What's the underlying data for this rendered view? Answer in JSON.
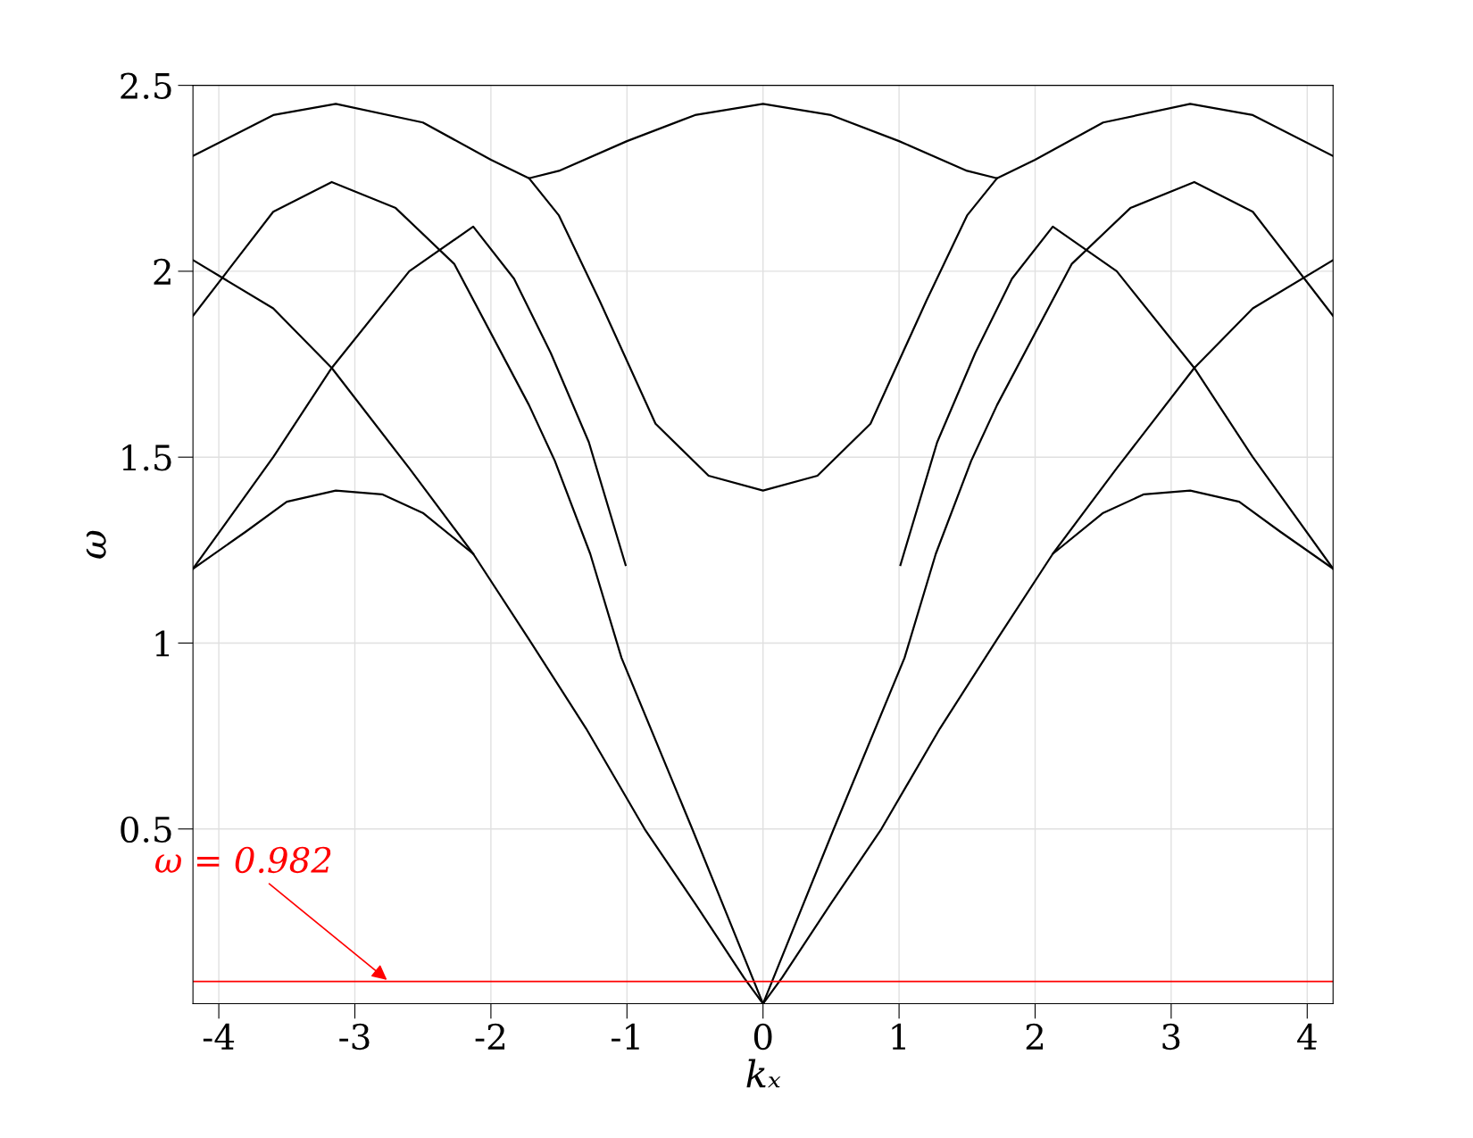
{
  "chart_data": {
    "type": "line",
    "xlabel": "kₓ",
    "ylabel": "ω",
    "xlim": [
      -4.19,
      4.19
    ],
    "ylim": [
      0.03,
      2.5
    ],
    "xticks": [
      -4,
      -3,
      -2,
      -1,
      0,
      1,
      2,
      3,
      4
    ],
    "yticks": [
      0.5,
      1,
      1.5,
      2,
      2.5
    ],
    "grid": true,
    "legend": false,
    "marker": "none",
    "line_style": "solid",
    "series": [
      {
        "color": "#000000",
        "x": [
          -4.19,
          -3.8,
          -3.5,
          -3.14,
          -2.8,
          -2.5,
          -2.13,
          -1.72,
          -1.3,
          -0.87,
          -0.5,
          -0.14,
          0,
          0.14,
          0.5,
          0.87,
          1.3,
          1.72,
          2.13,
          2.5,
          2.8,
          3.14,
          3.5,
          3.8,
          4.19
        ],
        "values": [
          1.2,
          1.3,
          1.38,
          1.41,
          1.4,
          1.35,
          1.24,
          1.01,
          0.77,
          0.5,
          0.3,
          0.1,
          0.03,
          0.1,
          0.3,
          0.5,
          0.77,
          1.01,
          1.24,
          1.35,
          1.4,
          1.41,
          1.38,
          1.3,
          1.2
        ]
      },
      {
        "color": "#000000",
        "x": [
          -4.19,
          -3.6,
          -3.17,
          -2.7,
          -2.27,
          -1.72,
          -1.53,
          -1.27,
          -1.04,
          -0.52,
          0,
          0.52,
          1.04,
          1.27,
          1.53,
          1.72,
          2.27,
          2.7,
          3.17,
          3.6,
          4.19
        ],
        "values": [
          1.88,
          2.16,
          2.24,
          2.17,
          2.02,
          1.64,
          1.49,
          1.24,
          0.96,
          0.5,
          0.03,
          0.5,
          0.96,
          1.24,
          1.49,
          1.64,
          2.02,
          2.17,
          2.24,
          2.16,
          1.88
        ]
      },
      {
        "color": "#000000",
        "x": [
          -4.19,
          -3.6,
          -3.14,
          -2.5,
          -2,
          -1.72,
          -1.5,
          -1,
          -0.5,
          0,
          0.5,
          1,
          1.5,
          1.72,
          2,
          2.5,
          3.14,
          3.6,
          4.19
        ],
        "values": [
          2.31,
          2.42,
          2.45,
          2.4,
          2.3,
          2.25,
          2.27,
          2.35,
          2.42,
          2.45,
          2.42,
          2.35,
          2.27,
          2.25,
          2.3,
          2.4,
          2.45,
          2.42,
          2.31
        ]
      },
      {
        "color": "#000000",
        "x": [
          -1.72,
          -1.5,
          -1.2,
          -0.79,
          -0.4,
          0,
          0.4,
          0.79,
          1.2,
          1.5,
          1.72
        ],
        "values": [
          2.25,
          2.15,
          1.92,
          1.59,
          1.45,
          1.41,
          1.45,
          1.59,
          1.92,
          2.15,
          2.25
        ]
      },
      {
        "color": "#000000",
        "x": [
          -4.19,
          -3.6,
          -3.17,
          -2.6,
          -2.13,
          -1.83,
          -1.56,
          -1.28,
          -1.01,
          0,
          1.01,
          1.28,
          1.56,
          1.83,
          2.13,
          2.6,
          3.17,
          3.6,
          4.19
        ],
        "values": [
          1.2,
          1.5,
          1.74,
          2.0,
          2.12,
          1.98,
          1.78,
          1.54,
          1.21,
          null,
          1.21,
          1.54,
          1.78,
          1.98,
          2.12,
          2.0,
          1.74,
          1.5,
          1.2
        ]
      },
      {
        "color": "#000000",
        "x": [
          -4.19,
          -3.6,
          -3.17,
          -2.6,
          -2.13,
          0,
          2.13,
          2.6,
          3.17,
          3.6,
          4.19
        ],
        "values": [
          2.03,
          1.9,
          1.74,
          1.47,
          1.24,
          null,
          1.24,
          1.47,
          1.74,
          1.9,
          2.03
        ]
      }
    ],
    "ref_lines": [
      {
        "axis": "y",
        "value": 0.09,
        "label": null,
        "color": "#ff0000",
        "line_style": "solid"
      }
    ],
    "annotations": [
      {
        "text": "ω = 0.982",
        "x": -2.75,
        "y": 0.09
      }
    ]
  }
}
